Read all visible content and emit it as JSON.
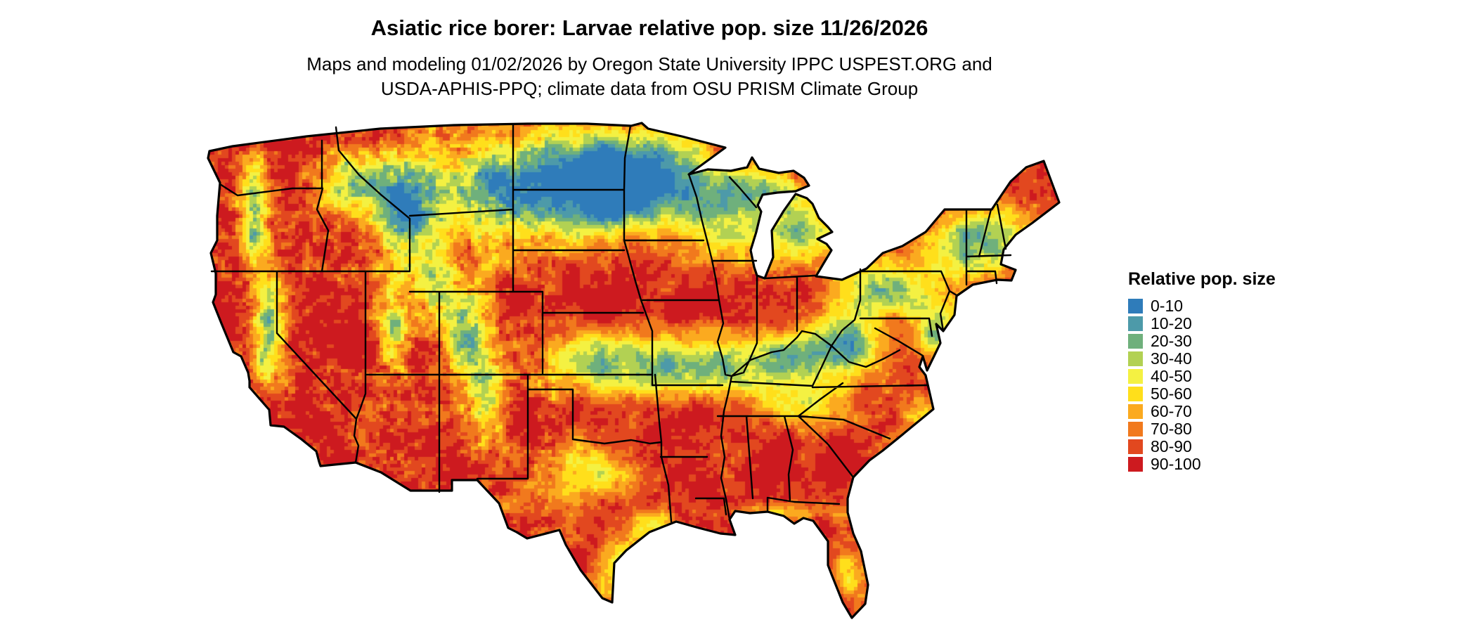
{
  "page": {
    "background_color": "#ffffff"
  },
  "header": {
    "title": "Asiatic rice borer: Larvae relative pop. size 11/26/2026",
    "subtitle_line1": "Maps and modeling 01/02/2026 by Oregon State University IPPC USPEST.ORG and",
    "subtitle_line2": "USDA-APHIS-PPQ; climate data from OSU PRISM Climate Group"
  },
  "map": {
    "region": "Contiguous United States",
    "type": "raster choropleth of relative population size",
    "border_color": "#000000"
  },
  "legend": {
    "title": "Relative pop. size",
    "items": [
      {
        "label": "0-10",
        "color": "#2f7cba"
      },
      {
        "label": "10-20",
        "color": "#4d9aa9"
      },
      {
        "label": "20-30",
        "color": "#6fb07c"
      },
      {
        "label": "30-40",
        "color": "#b2d153"
      },
      {
        "label": "40-50",
        "color": "#f4f142"
      },
      {
        "label": "50-60",
        "color": "#ffdf1b"
      },
      {
        "label": "60-70",
        "color": "#fbaa1f"
      },
      {
        "label": "70-80",
        "color": "#f1791d"
      },
      {
        "label": "80-90",
        "color": "#e2481f"
      },
      {
        "label": "90-100",
        "color": "#cd1a1f"
      }
    ]
  }
}
